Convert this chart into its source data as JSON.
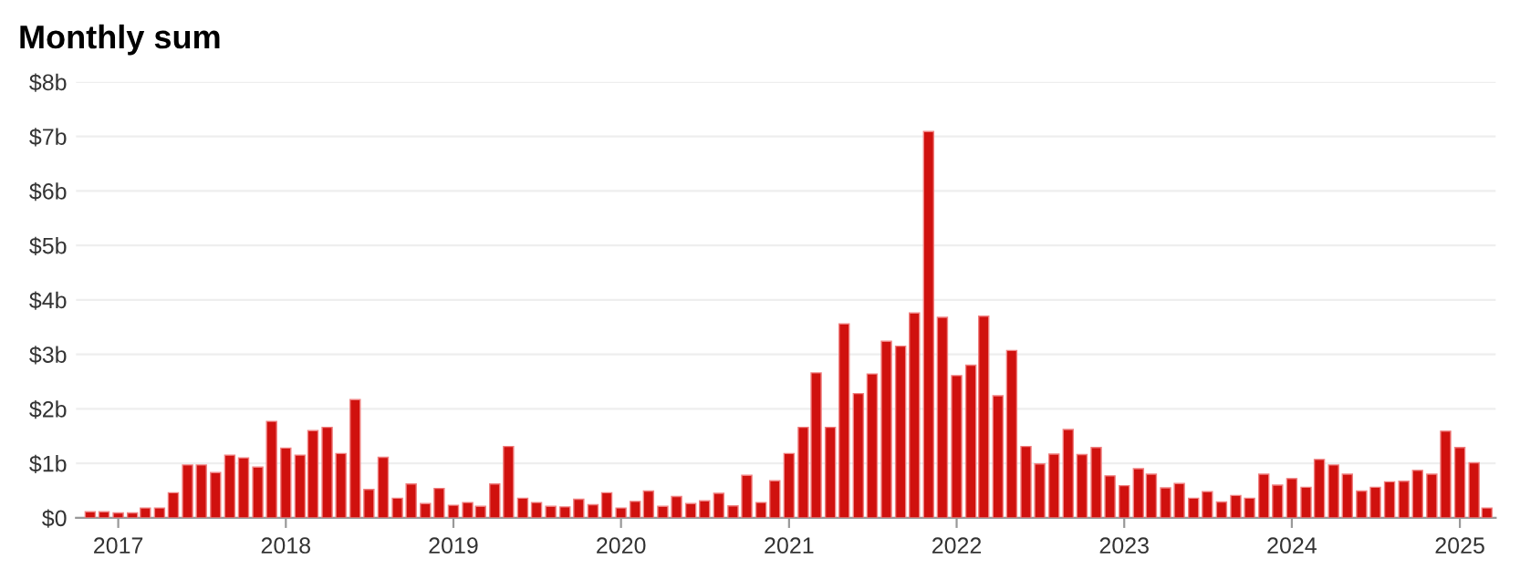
{
  "chart_data": {
    "type": "bar",
    "title": "Monthly sum",
    "x": [
      "2016-11",
      "2016-12",
      "2017-01",
      "2017-02",
      "2017-03",
      "2017-04",
      "2017-05",
      "2017-06",
      "2017-07",
      "2017-08",
      "2017-09",
      "2017-10",
      "2017-11",
      "2017-12",
      "2018-01",
      "2018-02",
      "2018-03",
      "2018-04",
      "2018-05",
      "2018-06",
      "2018-07",
      "2018-08",
      "2018-09",
      "2018-10",
      "2018-11",
      "2018-12",
      "2019-01",
      "2019-02",
      "2019-03",
      "2019-04",
      "2019-05",
      "2019-06",
      "2019-07",
      "2019-08",
      "2019-09",
      "2019-10",
      "2019-11",
      "2019-12",
      "2020-01",
      "2020-02",
      "2020-03",
      "2020-04",
      "2020-05",
      "2020-06",
      "2020-07",
      "2020-08",
      "2020-09",
      "2020-10",
      "2020-11",
      "2020-12",
      "2021-01",
      "2021-02",
      "2021-03",
      "2021-04",
      "2021-05",
      "2021-06",
      "2021-07",
      "2021-08",
      "2021-09",
      "2021-10",
      "2021-11",
      "2021-12",
      "2022-01",
      "2022-02",
      "2022-03",
      "2022-04",
      "2022-05",
      "2022-06",
      "2022-07",
      "2022-08",
      "2022-09",
      "2022-10",
      "2022-11",
      "2022-12",
      "2023-01",
      "2023-02",
      "2023-03",
      "2023-04",
      "2023-05",
      "2023-06",
      "2023-07",
      "2023-08",
      "2023-09",
      "2023-10",
      "2023-11",
      "2023-12",
      "2024-01",
      "2024-02",
      "2024-03",
      "2024-04",
      "2024-05",
      "2024-06",
      "2024-07",
      "2024-08",
      "2024-09",
      "2024-10",
      "2024-11",
      "2024-12",
      "2025-01",
      "2025-02",
      "2025-03"
    ],
    "values": [
      0.11,
      0.11,
      0.09,
      0.09,
      0.18,
      0.18,
      0.46,
      0.97,
      0.97,
      0.83,
      1.15,
      1.1,
      0.93,
      1.77,
      1.28,
      1.15,
      1.6,
      1.66,
      1.18,
      2.17,
      0.52,
      1.11,
      0.36,
      0.62,
      0.26,
      0.54,
      0.23,
      0.28,
      0.21,
      0.62,
      1.31,
      0.36,
      0.28,
      0.21,
      0.2,
      0.34,
      0.24,
      0.46,
      0.18,
      0.3,
      0.49,
      0.21,
      0.39,
      0.26,
      0.31,
      0.45,
      0.22,
      0.78,
      0.28,
      0.68,
      1.18,
      1.66,
      2.66,
      1.66,
      3.56,
      2.28,
      2.64,
      3.24,
      3.15,
      3.76,
      7.09,
      3.68,
      2.61,
      2.8,
      3.7,
      2.24,
      3.07,
      1.31,
      0.99,
      1.17,
      1.62,
      1.16,
      1.29,
      0.77,
      0.59,
      0.9,
      0.8,
      0.55,
      0.63,
      0.36,
      0.48,
      0.29,
      0.41,
      0.36,
      0.8,
      0.6,
      0.72,
      0.56,
      1.07,
      0.97,
      0.8,
      0.49,
      0.56,
      0.66,
      0.67,
      0.87,
      0.8,
      1.59,
      1.29,
      1.01,
      0.18
    ],
    "color": "#d0110e",
    "xlim": [
      "2016-10-01",
      "2025-03-20"
    ],
    "xticks": [
      {
        "value": "2017-01-01",
        "label": "2017"
      },
      {
        "value": "2018-01-01",
        "label": "2018"
      },
      {
        "value": "2019-01-01",
        "label": "2019"
      },
      {
        "value": "2020-01-01",
        "label": "2020"
      },
      {
        "value": "2021-01-01",
        "label": "2021"
      },
      {
        "value": "2022-01-01",
        "label": "2022"
      },
      {
        "value": "2023-01-01",
        "label": "2023"
      },
      {
        "value": "2024-01-01",
        "label": "2024"
      },
      {
        "value": "2025-01-01",
        "label": "2025"
      }
    ],
    "ylim": [
      0,
      8
    ],
    "yticks": [
      {
        "value": 0,
        "label": "$0"
      },
      {
        "value": 1,
        "label": "$1b"
      },
      {
        "value": 2,
        "label": "$2b"
      },
      {
        "value": 3,
        "label": "$3b"
      },
      {
        "value": 4,
        "label": "$4b"
      },
      {
        "value": 5,
        "label": "$5b"
      },
      {
        "value": 6,
        "label": "$6b"
      },
      {
        "value": 7,
        "label": "$7b"
      },
      {
        "value": 8,
        "label": "$8b"
      }
    ],
    "grid": "y"
  }
}
